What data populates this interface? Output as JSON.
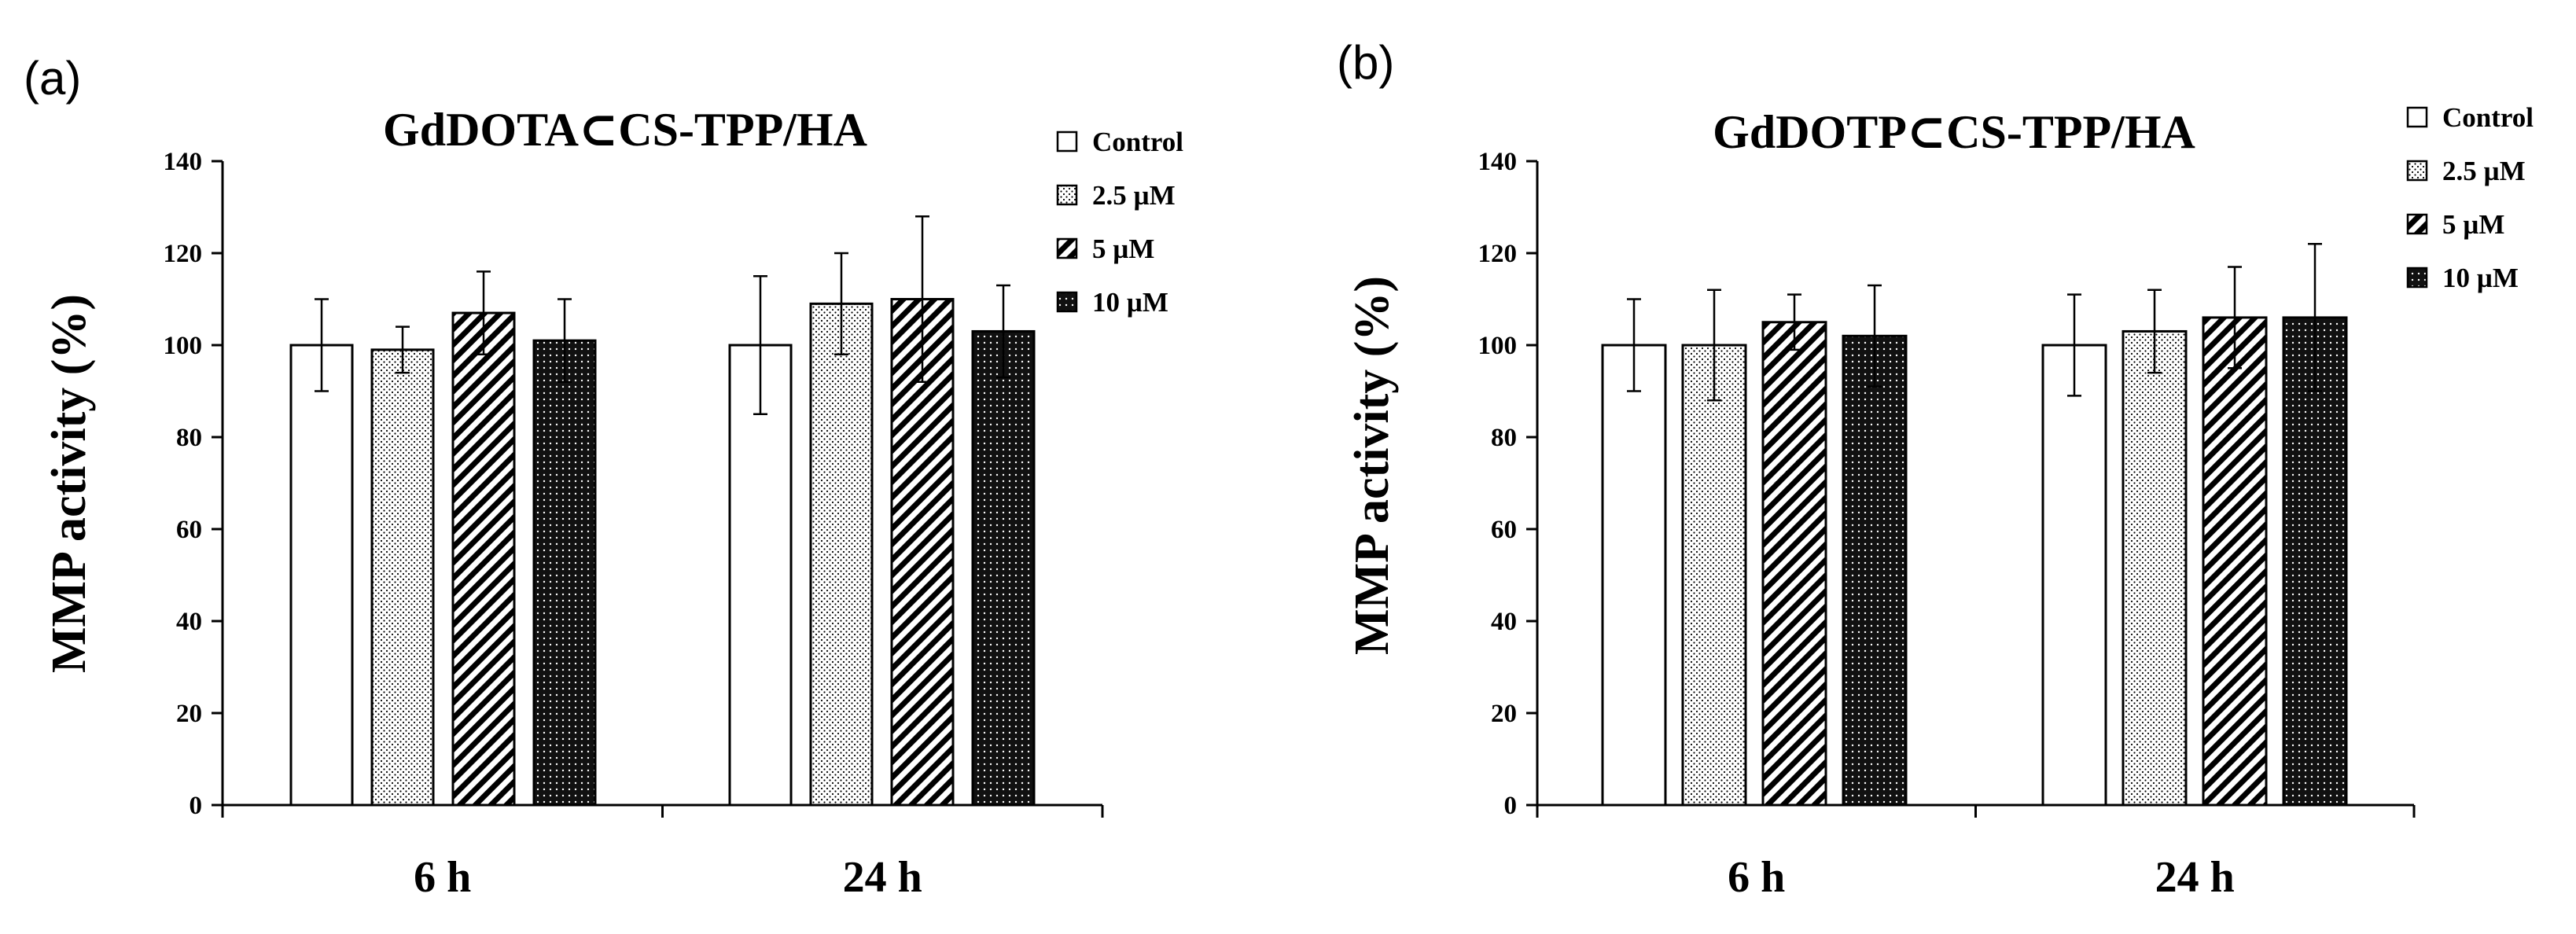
{
  "figure": {
    "panels": [
      {
        "label": "(a)"
      },
      {
        "label": "(b)"
      }
    ]
  },
  "chart_data": [
    {
      "type": "bar",
      "panel_label": "(a)",
      "title": "GdDOTA⊂CS-TPP/HA",
      "xlabel": "",
      "ylabel": "MMP activity  (%)",
      "ylim": [
        0,
        140
      ],
      "yticks": [
        0,
        20,
        40,
        60,
        80,
        100,
        120,
        140
      ],
      "categories": [
        "6 h",
        "24 h"
      ],
      "series": [
        {
          "name": "Control",
          "pattern": "white",
          "values": [
            100,
            100
          ],
          "errors": [
            10,
            15
          ]
        },
        {
          "name": "2.5 µM",
          "pattern": "dots",
          "values": [
            99,
            109
          ],
          "errors": [
            5,
            11
          ]
        },
        {
          "name": "5 µM",
          "pattern": "hatch",
          "values": [
            107,
            110
          ],
          "errors": [
            9,
            18
          ]
        },
        {
          "name": "10 µM",
          "pattern": "dark",
          "values": [
            101,
            103
          ],
          "errors": [
            9,
            10
          ]
        }
      ],
      "legend": {
        "position": "top-right"
      }
    },
    {
      "type": "bar",
      "panel_label": "(b)",
      "title": "GdDOTP⊂CS-TPP/HA",
      "xlabel": "",
      "ylabel": "MMP activity   (%)",
      "ylim": [
        0,
        140
      ],
      "yticks": [
        0,
        20,
        40,
        60,
        80,
        100,
        120,
        140
      ],
      "categories": [
        "6 h",
        "24 h"
      ],
      "series": [
        {
          "name": "Control",
          "pattern": "white",
          "values": [
            100,
            100
          ],
          "errors": [
            10,
            11
          ]
        },
        {
          "name": "2.5 µM",
          "pattern": "dots",
          "values": [
            100,
            103
          ],
          "errors": [
            12,
            9
          ]
        },
        {
          "name": "5 µM",
          "pattern": "hatch",
          "values": [
            105,
            106
          ],
          "errors": [
            6,
            11
          ]
        },
        {
          "name": "10 µM",
          "pattern": "dark",
          "values": [
            102,
            106
          ],
          "errors": [
            11,
            16
          ]
        }
      ],
      "legend": {
        "position": "top-right"
      }
    }
  ]
}
